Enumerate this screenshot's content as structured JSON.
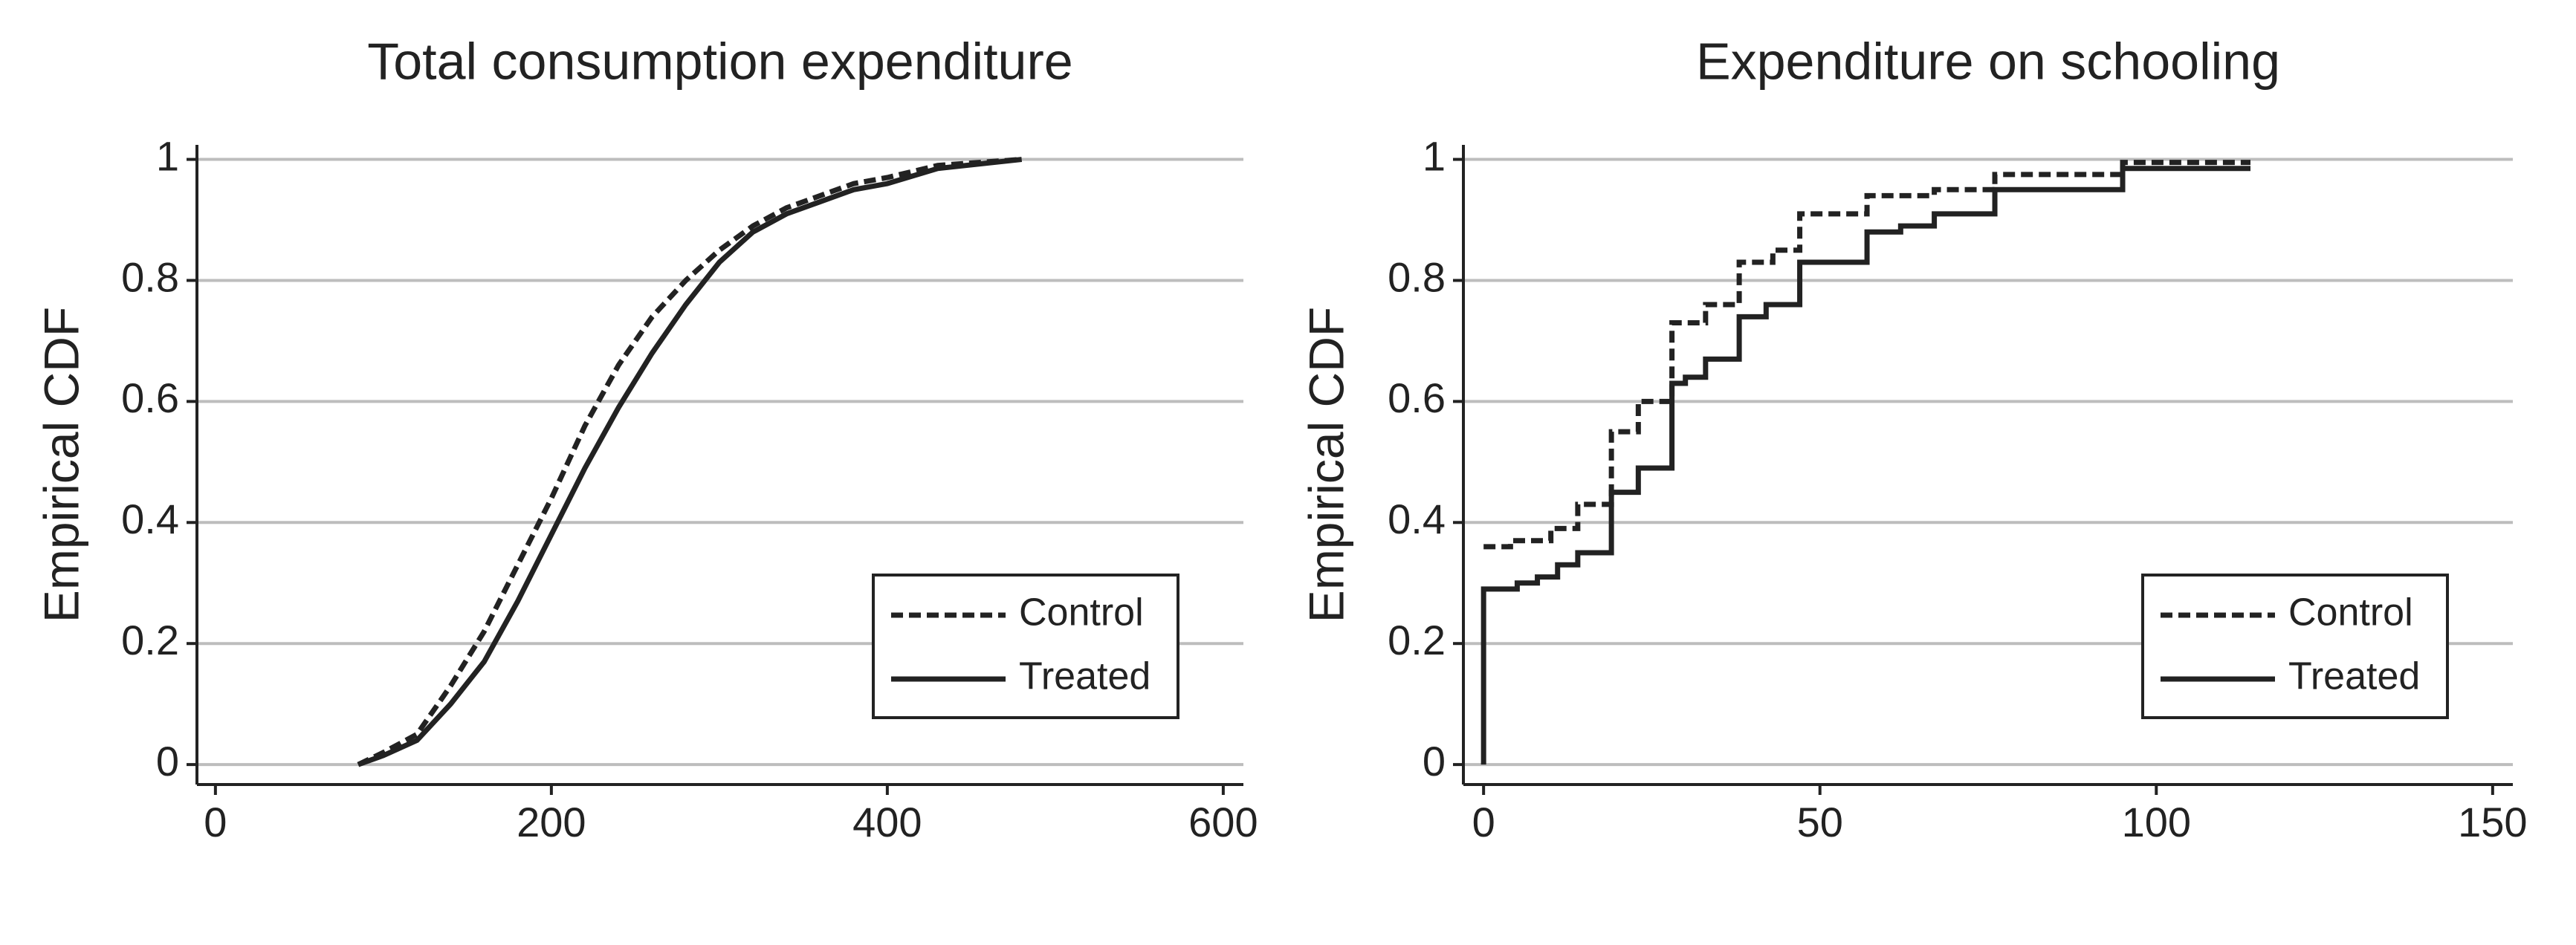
{
  "chart_data": [
    {
      "type": "line",
      "title": "Total consumption expenditure",
      "ylabel": "Empirical CDF",
      "xlim": [
        -11,
        612
      ],
      "ylim": [
        -0.033,
        1.024
      ],
      "xticks": [
        0,
        200,
        400,
        600
      ],
      "yticks": [
        0,
        0.2,
        0.4,
        0.6,
        0.8,
        1
      ],
      "grid": true,
      "legend": "lower right",
      "series": [
        {
          "name": "Control",
          "color": "#222222",
          "linestyle": "dashed",
          "x": [
            85,
            100,
            120,
            140,
            160,
            180,
            200,
            220,
            240,
            260,
            280,
            300,
            320,
            340,
            360,
            380,
            400,
            430,
            480
          ],
          "values": [
            0,
            0.02,
            0.05,
            0.13,
            0.22,
            0.33,
            0.44,
            0.56,
            0.66,
            0.74,
            0.8,
            0.85,
            0.89,
            0.92,
            0.94,
            0.96,
            0.97,
            0.99,
            1
          ]
        },
        {
          "name": "Treated",
          "color": "#222222",
          "linestyle": "solid",
          "x": [
            85,
            100,
            120,
            140,
            160,
            180,
            200,
            220,
            240,
            260,
            280,
            300,
            320,
            340,
            360,
            380,
            400,
            430,
            480
          ],
          "values": [
            0,
            0.015,
            0.04,
            0.1,
            0.17,
            0.27,
            0.38,
            0.49,
            0.59,
            0.68,
            0.76,
            0.83,
            0.88,
            0.91,
            0.93,
            0.95,
            0.96,
            0.985,
            1
          ]
        }
      ]
    },
    {
      "type": "line",
      "title": "Expenditure on schooling",
      "ylabel": "Empirical CDF",
      "xlim": [
        -3,
        153
      ],
      "ylim": [
        -0.033,
        1.024
      ],
      "xticks": [
        0,
        50,
        100,
        150
      ],
      "yticks": [
        0,
        0.2,
        0.4,
        0.6,
        0.8,
        1
      ],
      "grid": true,
      "legend": "lower right",
      "series": [
        {
          "name": "Control",
          "color": "#222222",
          "linestyle": "dashed",
          "x": [
            0,
            4,
            4,
            10,
            10,
            14,
            14,
            19,
            19,
            23,
            23,
            28,
            28,
            33,
            33,
            38,
            38,
            43,
            43,
            47,
            47,
            57,
            57,
            67,
            67,
            76,
            76,
            95,
            95,
            114
          ],
          "values": [
            0.36,
            0.36,
            0.37,
            0.37,
            0.39,
            0.39,
            0.43,
            0.43,
            0.55,
            0.55,
            0.6,
            0.6,
            0.73,
            0.73,
            0.76,
            0.76,
            0.83,
            0.83,
            0.85,
            0.85,
            0.91,
            0.91,
            0.94,
            0.94,
            0.95,
            0.95,
            0.975,
            0.975,
            0.995,
            0.995
          ]
        },
        {
          "name": "Treated",
          "color": "#222222",
          "linestyle": "solid",
          "x": [
            0,
            0,
            5,
            5,
            8,
            8,
            11,
            11,
            14,
            14,
            19,
            19,
            23,
            23,
            28,
            28,
            30,
            30,
            33,
            33,
            38,
            38,
            42,
            42,
            47,
            47,
            57,
            57,
            62,
            62,
            67,
            67,
            76,
            76,
            95,
            95,
            114
          ],
          "values": [
            0,
            0.29,
            0.29,
            0.3,
            0.3,
            0.31,
            0.31,
            0.33,
            0.33,
            0.35,
            0.35,
            0.45,
            0.45,
            0.49,
            0.49,
            0.63,
            0.63,
            0.64,
            0.64,
            0.67,
            0.67,
            0.74,
            0.74,
            0.76,
            0.76,
            0.83,
            0.83,
            0.88,
            0.88,
            0.89,
            0.89,
            0.91,
            0.91,
            0.95,
            0.95,
            0.985,
            0.985
          ]
        }
      ]
    }
  ]
}
